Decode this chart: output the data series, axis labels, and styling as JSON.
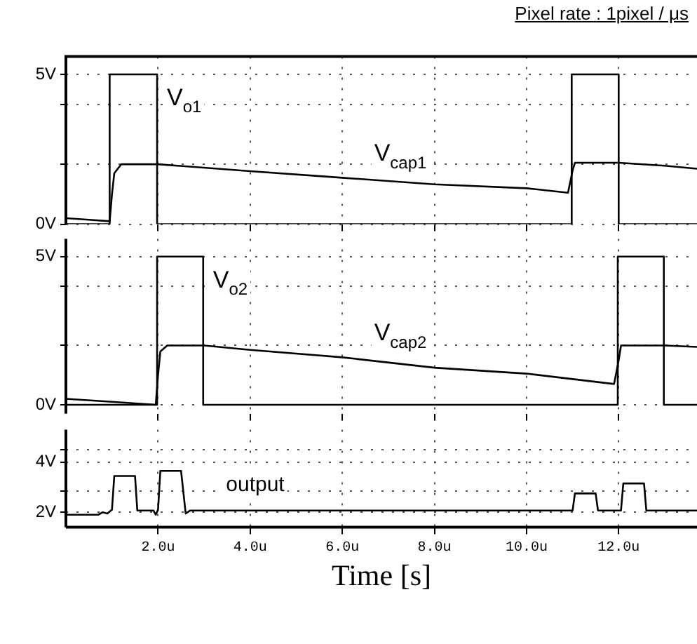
{
  "chart_data": [
    {
      "type": "line",
      "title": "Pixel rate : 1pixel / μs",
      "xlim": [
        0,
        13.7
      ],
      "ylim": [
        0,
        5.6
      ],
      "grid": true,
      "tick_labels": "y",
      "legend": false,
      "marker": "none",
      "xticks": [
        {
          "value": 2,
          "label": null
        },
        {
          "value": 4,
          "label": null
        },
        {
          "value": 6,
          "label": null
        },
        {
          "value": 8,
          "label": null
        },
        {
          "value": 10,
          "label": null
        },
        {
          "value": 12,
          "label": null
        }
      ],
      "yticks": [
        {
          "value": 0,
          "label": "0V"
        },
        {
          "value": 2,
          "label": null
        },
        {
          "value": 4,
          "label": null
        },
        {
          "value": 5,
          "label": "5V"
        }
      ],
      "series": [
        {
          "name": "V$_{o1}$",
          "color": "#000000",
          "x": [
            0,
            0.95,
            0.95,
            1.98,
            1.98,
            10.98,
            10.98,
            12.0,
            12.0,
            13.7
          ],
          "values": [
            0,
            0,
            5,
            5,
            0,
            0,
            5,
            5,
            0,
            0
          ]
        },
        {
          "name": "V$_{cap1}$",
          "color": "#000000",
          "x": [
            0,
            0.5,
            0.95,
            1.0,
            1.05,
            1.2,
            2.0,
            4.0,
            6.0,
            8.0,
            10.0,
            10.9,
            11.0,
            11.05,
            12.0,
            13.0,
            13.7
          ],
          "values": [
            0.2,
            0.15,
            0.1,
            1.0,
            1.7,
            2.0,
            2.0,
            1.77,
            1.55,
            1.33,
            1.2,
            1.05,
            1.8,
            2.05,
            2.05,
            1.95,
            1.85
          ]
        }
      ]
    },
    {
      "type": "line",
      "xlim": [
        0,
        13.7
      ],
      "ylim": [
        -0.3,
        5.6
      ],
      "grid": true,
      "tick_labels": "y",
      "legend": false,
      "marker": "none",
      "xticks": [
        {
          "value": 2,
          "label": null
        },
        {
          "value": 4,
          "label": null
        },
        {
          "value": 6,
          "label": null
        },
        {
          "value": 8,
          "label": null
        },
        {
          "value": 10,
          "label": null
        },
        {
          "value": 12,
          "label": null
        }
      ],
      "yticks": [
        {
          "value": 0,
          "label": "0V"
        },
        {
          "value": 2,
          "label": null
        },
        {
          "value": 4,
          "label": null
        },
        {
          "value": 5,
          "label": "5V"
        }
      ],
      "series": [
        {
          "name": "V$_{o2}$",
          "color": "#000000",
          "x": [
            0,
            1.98,
            1.98,
            2.98,
            2.98,
            11.98,
            11.98,
            12.98,
            12.98,
            13.7
          ],
          "values": [
            0,
            0,
            5,
            5,
            0,
            0,
            5,
            5,
            0,
            0
          ]
        },
        {
          "name": "V$_{cap2}$",
          "color": "#000000",
          "x": [
            0,
            1.0,
            1.95,
            2.0,
            2.05,
            2.2,
            3.0,
            4.0,
            6.0,
            8.0,
            10.0,
            11.9,
            12.0,
            12.05,
            13.0,
            13.7
          ],
          "values": [
            0.2,
            0.1,
            0.0,
            1.0,
            1.8,
            2.0,
            2.0,
            1.85,
            1.6,
            1.25,
            1.05,
            0.7,
            1.5,
            2.0,
            2.0,
            1.95
          ]
        }
      ]
    },
    {
      "type": "line",
      "xlabel": "Time [s]",
      "xlim": [
        0,
        13.7
      ],
      "ylim": [
        1.4,
        5.3
      ],
      "grid": true,
      "legend": false,
      "marker": "none",
      "xticks": [
        {
          "value": 2,
          "label": "2.0u"
        },
        {
          "value": 4,
          "label": "4.0u"
        },
        {
          "value": 6,
          "label": "6.0u"
        },
        {
          "value": 8,
          "label": "8.0u"
        },
        {
          "value": 10,
          "label": "10.0u"
        },
        {
          "value": 12,
          "label": "12.0u"
        }
      ],
      "yticks": [
        {
          "value": 2,
          "label": "2V"
        },
        {
          "value": 2.85,
          "label": null
        },
        {
          "value": 4,
          "label": "4V"
        },
        {
          "value": 4.5,
          "label": null
        }
      ],
      "series": [
        {
          "name": "output",
          "color": "#000000",
          "x": [
            0,
            0.7,
            0.8,
            0.9,
            1.0,
            1.05,
            1.5,
            1.55,
            1.9,
            1.95,
            2.0,
            2.05,
            2.5,
            2.6,
            2.7,
            11.0,
            11.05,
            11.5,
            11.55,
            12.05,
            12.1,
            12.55,
            12.6,
            13.7
          ],
          "values": [
            1.9,
            1.9,
            2.0,
            1.95,
            2.1,
            3.45,
            3.45,
            2.07,
            2.07,
            1.9,
            2.1,
            3.65,
            3.65,
            1.95,
            2.07,
            2.07,
            2.75,
            2.75,
            2.07,
            2.07,
            3.15,
            3.15,
            2.07,
            2.07
          ]
        }
      ]
    }
  ]
}
